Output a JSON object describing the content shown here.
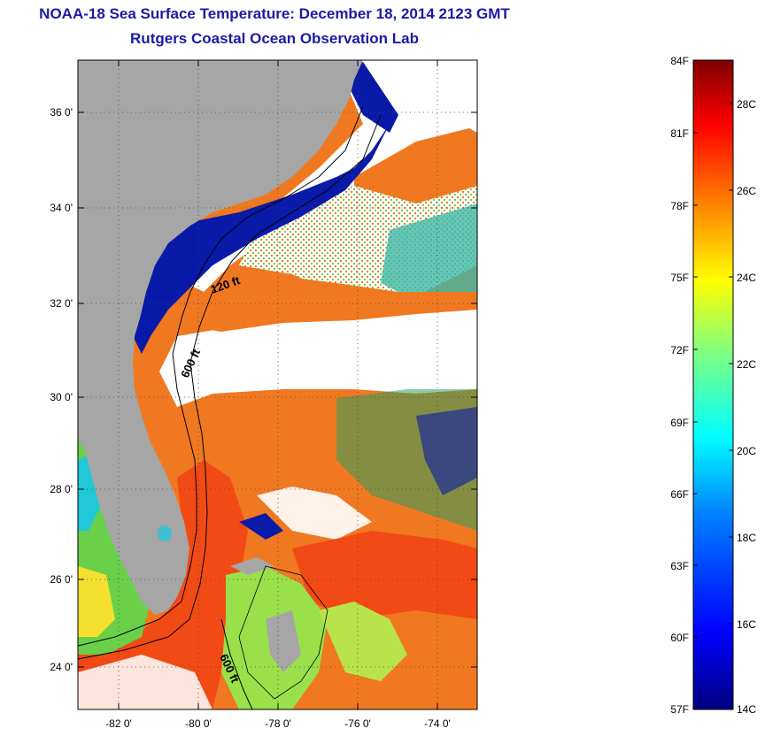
{
  "title_line1": "NOAA-18 Sea Surface Temperature:  December 18, 2014 2123 GMT",
  "title_line2": "Rutgers Coastal Ocean Observation Lab",
  "lat_labels": [
    "36 0'",
    "34 0'",
    "32 0'",
    "30 0'",
    "28 0'",
    "26 0'",
    "24 0'"
  ],
  "lon_labels": [
    "-82 0'",
    "-80 0'",
    "-78 0'",
    "-76 0'",
    "-74 0'"
  ],
  "contour_labels": [
    "120 ft",
    "600 ft",
    "600 ft"
  ],
  "colorbar": {
    "fahrenheit": [
      "84F",
      "81F",
      "78F",
      "75F",
      "72F",
      "69F",
      "66F",
      "63F",
      "60F",
      "57F"
    ],
    "celsius": [
      "28C",
      "26C",
      "24C",
      "22C",
      "20C",
      "18C",
      "16C",
      "14C"
    ],
    "colors": [
      "#00007f",
      "#0000ff",
      "#0080ff",
      "#00ffff",
      "#80ff80",
      "#ffff00",
      "#ff8000",
      "#ff0000",
      "#7f0000"
    ]
  },
  "colors": {
    "land": "#a6a6a6",
    "cloud": "#ffffff",
    "cold_coastal": "#0a1aa8",
    "warm_gulfstream": "#f24a14",
    "orange_warm": "#f07820",
    "title": "#1a1aa6"
  }
}
